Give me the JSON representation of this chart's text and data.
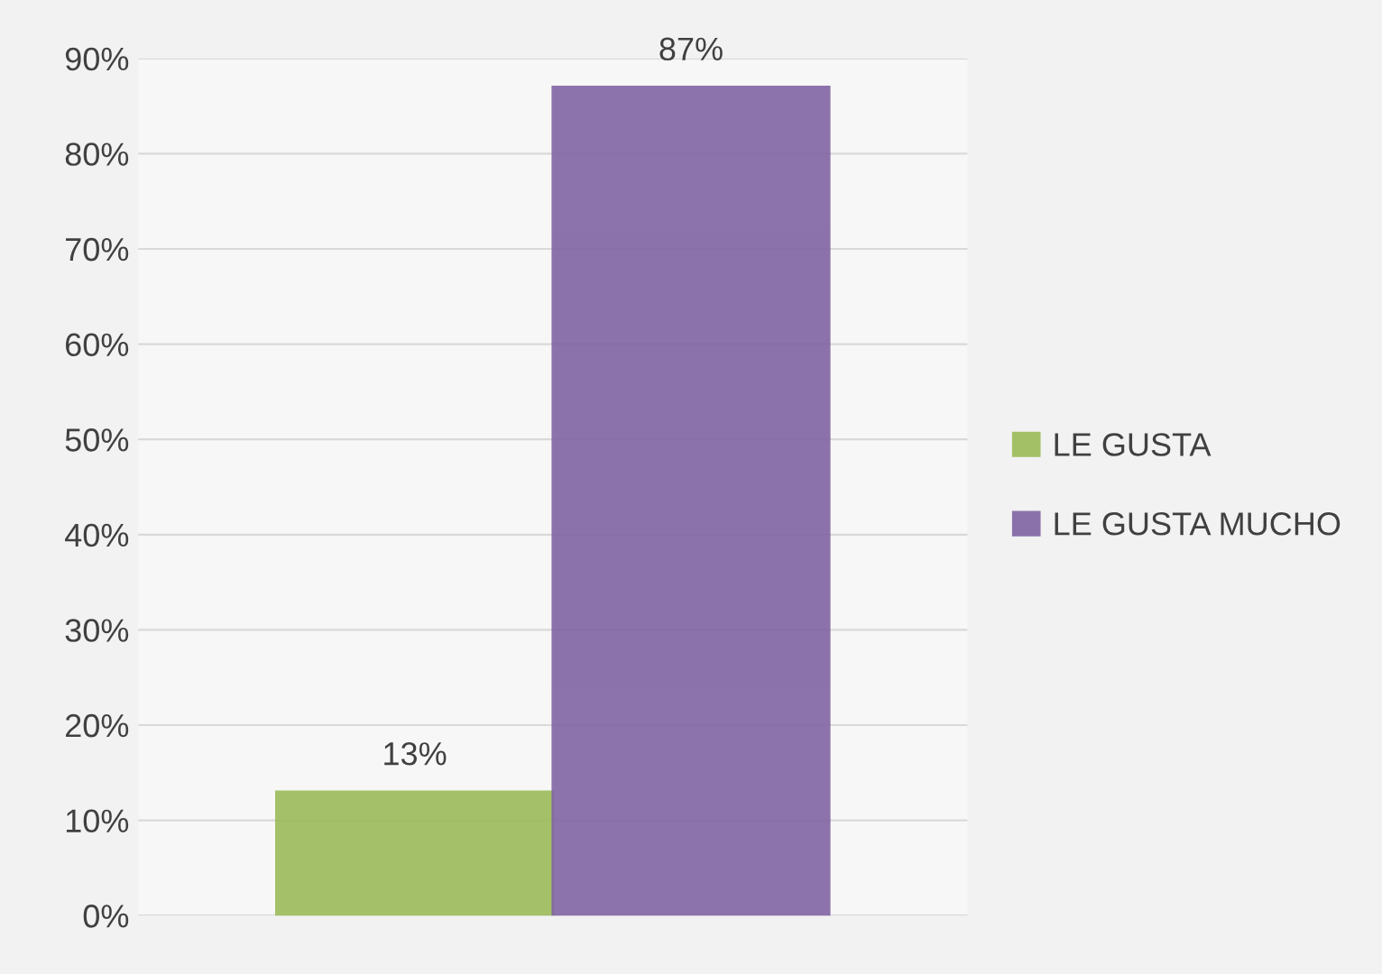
{
  "chart_data": {
    "type": "bar",
    "categories": [
      null
    ],
    "series": [
      {
        "name": "LE GUSTA",
        "color": "#9bbb59",
        "values": [
          13
        ],
        "value_labels": [
          "13%"
        ]
      },
      {
        "name": "LE GUSTA MUCHO",
        "color": "#8064a2",
        "values": [
          87
        ],
        "value_labels": [
          "87%"
        ]
      }
    ],
    "ylim": [
      0,
      90
    ],
    "yticks": [
      {
        "value": 0,
        "label": "0%"
      },
      {
        "value": 10,
        "label": "10%"
      },
      {
        "value": 20,
        "label": "20%"
      },
      {
        "value": 30,
        "label": "30%"
      },
      {
        "value": 40,
        "label": "40%"
      },
      {
        "value": 50,
        "label": "50%"
      },
      {
        "value": 60,
        "label": "60%"
      },
      {
        "value": 70,
        "label": "70%"
      },
      {
        "value": 80,
        "label": "80%"
      },
      {
        "value": 90,
        "label": "90%"
      }
    ],
    "grid": "y",
    "legend": "right"
  }
}
